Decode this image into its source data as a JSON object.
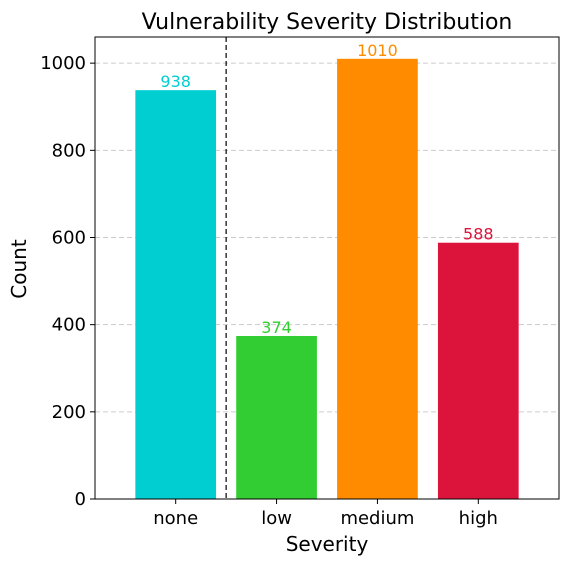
{
  "chart_data": {
    "type": "bar",
    "title": "Vulnerability Severity Distribution",
    "xlabel": "Severity",
    "ylabel": "Count",
    "categories": [
      "none",
      "low",
      "medium",
      "high"
    ],
    "values": [
      938,
      374,
      1010,
      588
    ],
    "bar_colors": [
      "#00CED1",
      "#32CD32",
      "#FF8C00",
      "#DC143C"
    ],
    "value_labels": [
      "938",
      "374",
      "1010",
      "588"
    ],
    "ylim": [
      0,
      1060
    ],
    "yticks": [
      0,
      200,
      400,
      600,
      800,
      1000
    ],
    "ytick_labels": [
      "0",
      "200",
      "400",
      "600",
      "800",
      "1000"
    ],
    "grid": {
      "axis": "y",
      "style": "dashed",
      "color": "#cccccc"
    },
    "vertical_separator": {
      "between": [
        "none",
        "low"
      ],
      "style": "dashed",
      "color": "#000000"
    },
    "legend": "none"
  }
}
